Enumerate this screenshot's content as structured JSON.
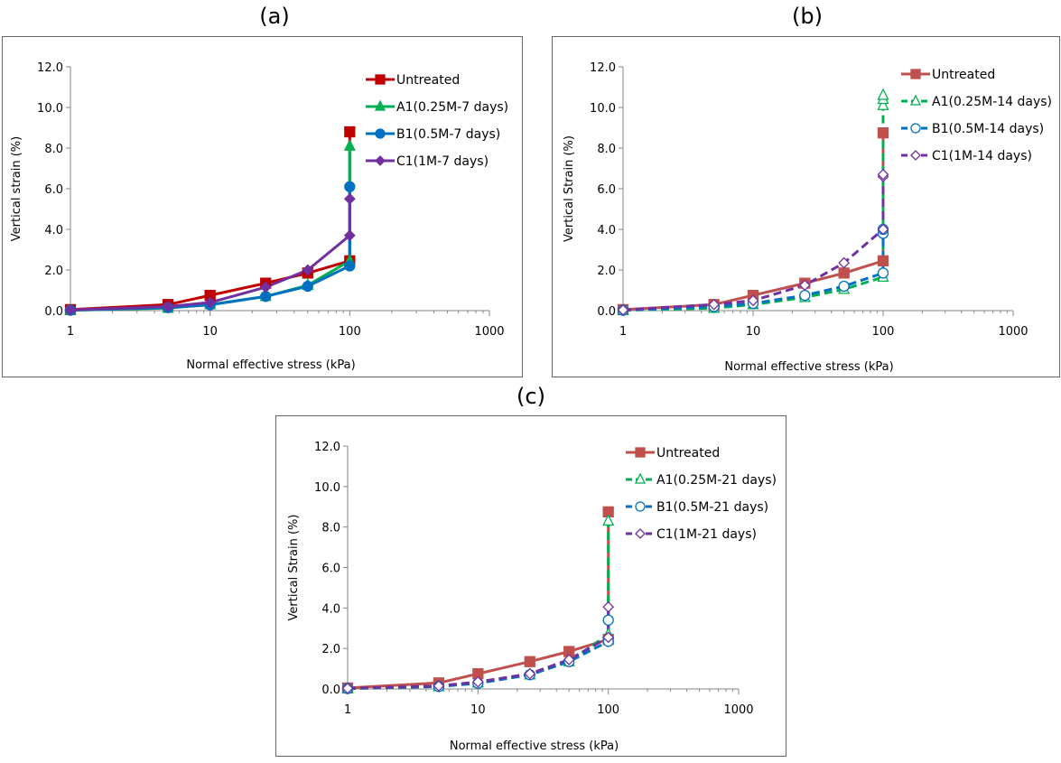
{
  "panels": [
    "(a)",
    "(b)",
    "(c)"
  ],
  "chart_data": [
    {
      "type": "line",
      "x_scale": "log",
      "xlabel": "Normal effective stress  (kPa)",
      "ylabel": "Vertical strain (%)",
      "xlim": [
        1,
        1000
      ],
      "ylim": [
        0,
        12
      ],
      "x_ticks": [
        "1",
        "10",
        "100",
        "1000"
      ],
      "y_ticks": [
        "0.0",
        "2.0",
        "4.0",
        "6.0",
        "8.0",
        "10.0",
        "12.0"
      ],
      "legend_position": "top-right",
      "series": [
        {
          "name": "Untreated",
          "color": "#C00000",
          "marker": "square",
          "filled": true,
          "dashed": false,
          "x": [
            1,
            5,
            10,
            25,
            50,
            100,
            100
          ],
          "y": [
            0.05,
            0.3,
            0.75,
            1.35,
            1.85,
            2.45,
            8.8
          ]
        },
        {
          "name": "A1(0.25M-7 days)",
          "color": "#00B050",
          "marker": "triangle",
          "filled": true,
          "dashed": false,
          "x": [
            1,
            5,
            10,
            25,
            50,
            100,
            100
          ],
          "y": [
            0.02,
            0.12,
            0.3,
            0.7,
            1.25,
            2.45,
            8.1
          ]
        },
        {
          "name": "B1(0.5M-7 days)",
          "color": "#0070C0",
          "marker": "circle",
          "filled": true,
          "dashed": false,
          "x": [
            1,
            5,
            10,
            25,
            50,
            100,
            100
          ],
          "y": [
            0.02,
            0.15,
            0.28,
            0.7,
            1.2,
            2.2,
            6.1
          ]
        },
        {
          "name": "C1(1M-7 days)",
          "color": "#7030A0",
          "marker": "diamond",
          "filled": true,
          "dashed": false,
          "x": [
            1,
            5,
            10,
            25,
            50,
            100,
            100
          ],
          "y": [
            0.03,
            0.2,
            0.4,
            1.15,
            2.0,
            3.7,
            5.5
          ]
        }
      ]
    },
    {
      "type": "line",
      "x_scale": "log",
      "xlabel": "Normal effective stress (kPa)",
      "ylabel": "Vertical Strain (%)",
      "xlim": [
        1,
        1000
      ],
      "ylim": [
        0,
        12
      ],
      "x_ticks": [
        "1",
        "10",
        "100",
        "1000"
      ],
      "y_ticks": [
        "0.0",
        "2.0",
        "4.0",
        "6.0",
        "8.0",
        "10.0",
        "12.0"
      ],
      "legend_position": "top-right",
      "series": [
        {
          "name": "Untreated",
          "color": "#C0504D",
          "marker": "square",
          "filled": true,
          "dashed": false,
          "x": [
            1,
            5,
            10,
            25,
            50,
            100,
            100
          ],
          "y": [
            0.05,
            0.3,
            0.75,
            1.35,
            1.85,
            2.45,
            8.75
          ]
        },
        {
          "name": "A1(0.25M-14 days)",
          "color": "#00B050",
          "marker": "triangle",
          "filled": false,
          "dashed": true,
          "x": [
            1,
            5,
            10,
            25,
            50,
            100,
            100,
            100,
            100
          ],
          "y": [
            0.02,
            0.12,
            0.3,
            0.65,
            1.05,
            1.65,
            10.1,
            10.4,
            10.6
          ]
        },
        {
          "name": "B1(0.5M-14 days)",
          "color": "#0070C0",
          "marker": "circle",
          "filled": false,
          "dashed": true,
          "x": [
            1,
            5,
            10,
            25,
            50,
            100,
            100,
            100
          ],
          "y": [
            0.02,
            0.2,
            0.35,
            0.75,
            1.2,
            1.85,
            3.8,
            4.0
          ]
        },
        {
          "name": "C1(1M-14 days)",
          "color": "#7030A0",
          "marker": "diamond",
          "filled": false,
          "dashed": true,
          "x": [
            1,
            5,
            10,
            25,
            50,
            100,
            100,
            100
          ],
          "y": [
            0.03,
            0.3,
            0.5,
            1.25,
            2.35,
            4.0,
            6.6,
            6.7
          ]
        }
      ]
    },
    {
      "type": "line",
      "x_scale": "log",
      "xlabel": "Normal effective stress (kPa)",
      "ylabel": "Vertical Strain (%)",
      "xlim": [
        1,
        1000
      ],
      "ylim": [
        0,
        12
      ],
      "x_ticks": [
        "1",
        "10",
        "100",
        "1000"
      ],
      "y_ticks": [
        "0.0",
        "2.0",
        "4.0",
        "6.0",
        "8.0",
        "10.0",
        "12.0"
      ],
      "legend_position": "top-right",
      "series": [
        {
          "name": "Untreated",
          "color": "#C0504D",
          "marker": "square",
          "filled": true,
          "dashed": false,
          "x": [
            1,
            5,
            10,
            25,
            50,
            100,
            100
          ],
          "y": [
            0.05,
            0.3,
            0.75,
            1.35,
            1.85,
            2.45,
            8.75
          ]
        },
        {
          "name": "A1(0.25M-21 days)",
          "color": "#00B050",
          "marker": "triangle",
          "filled": false,
          "dashed": true,
          "x": [
            1,
            5,
            10,
            25,
            50,
            100,
            100
          ],
          "y": [
            0.02,
            0.12,
            0.3,
            0.7,
            1.35,
            2.7,
            8.3
          ]
        },
        {
          "name": "B1(0.5M-21 days)",
          "color": "#0070C0",
          "marker": "circle",
          "filled": false,
          "dashed": true,
          "x": [
            1,
            5,
            10,
            25,
            50,
            100,
            100
          ],
          "y": [
            0.02,
            0.12,
            0.28,
            0.7,
            1.35,
            2.35,
            3.4
          ]
        },
        {
          "name": "C1(1M-21 days)",
          "color": "#7030A0",
          "marker": "diamond",
          "filled": false,
          "dashed": true,
          "x": [
            1,
            5,
            10,
            25,
            50,
            100,
            100
          ],
          "y": [
            0.03,
            0.15,
            0.35,
            0.75,
            1.45,
            2.55,
            4.05
          ]
        }
      ]
    }
  ]
}
